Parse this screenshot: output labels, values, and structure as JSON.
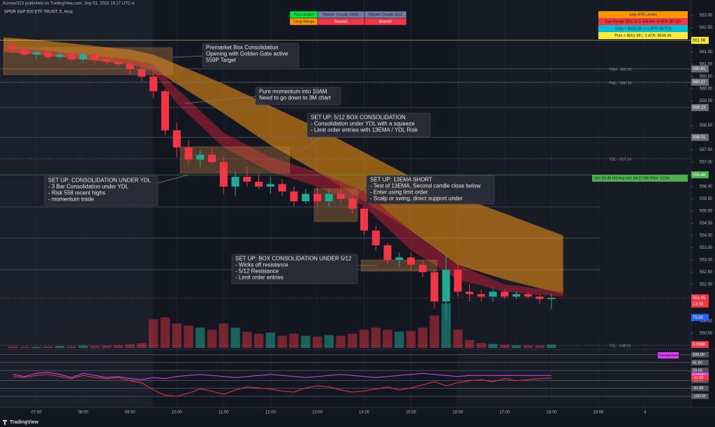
{
  "header": {
    "publisher": "Kunwar313 published on TradingView.com, Sep 03, 2024 18:17 UTC-4",
    "symbol": "SPDR S&P 500 ETF TRUST, 5, Arca",
    "brand": "TradingView"
  },
  "chart_data": [
    {
      "type": "candlestick",
      "x": [
        6.5,
        6.75,
        7,
        7.25,
        7.5,
        7.75,
        8,
        8.25,
        8.5,
        8.75,
        9,
        9.25,
        9.5,
        9.75,
        10,
        10.25,
        10.5,
        10.75,
        11,
        11.25,
        11.5,
        11.75,
        12,
        12.25,
        12.5,
        12.75,
        13,
        13.25,
        13.5,
        13.75,
        14,
        14.25,
        14.5,
        14.75,
        15,
        15.25,
        15.5,
        15.75,
        16,
        16.25,
        16.5,
        16.75,
        17,
        17.25,
        17.5,
        17.75,
        18
      ],
      "open": [
        561.8,
        561.6,
        561.4,
        561.5,
        561.3,
        561.4,
        561.2,
        561.4,
        561.2,
        561.1,
        561.0,
        560.8,
        560.5,
        559.9,
        558.3,
        557.6,
        557.1,
        557.3,
        557.0,
        556.0,
        556.4,
        556.2,
        556.0,
        556.1,
        555.8,
        555.4,
        555.7,
        555.4,
        555.7,
        555.5,
        555.1,
        554.2,
        553.6,
        553.0,
        553.1,
        552.8,
        552.5,
        551.3,
        552.6,
        551.7,
        551.6,
        551.5,
        551.7,
        551.5,
        551.6,
        551.5,
        551.4
      ],
      "high": [
        561.9,
        561.7,
        561.6,
        561.6,
        561.6,
        561.5,
        561.5,
        561.5,
        561.4,
        561.3,
        561.2,
        561.1,
        560.8,
        560.0,
        558.6,
        557.9,
        557.5,
        557.6,
        557.2,
        556.6,
        556.8,
        556.5,
        556.4,
        556.3,
        556.0,
        555.9,
        556.0,
        555.9,
        556.0,
        555.8,
        555.2,
        554.4,
        553.7,
        553.3,
        553.3,
        553.0,
        552.6,
        553.2,
        552.9,
        552.0,
        551.8,
        551.9,
        551.8,
        551.7,
        551.7,
        551.6,
        551.6
      ],
      "low": [
        561.5,
        561.3,
        561.2,
        561.2,
        561.2,
        561.1,
        561.1,
        561.0,
        561.0,
        560.9,
        560.6,
        560.3,
        559.6,
        558.1,
        557.2,
        556.9,
        556.8,
        556.9,
        555.7,
        555.6,
        556.0,
        555.9,
        555.7,
        555.6,
        555.2,
        555.3,
        555.2,
        555.2,
        555.3,
        554.9,
        554.0,
        553.4,
        552.8,
        552.7,
        552.6,
        552.3,
        551.0,
        550.5,
        551.5,
        551.3,
        551.3,
        551.3,
        551.4,
        551.4,
        551.4,
        551.2,
        551.0
      ],
      "close": [
        561.6,
        561.4,
        561.5,
        561.3,
        561.4,
        561.2,
        561.4,
        561.2,
        561.1,
        561.0,
        560.8,
        560.5,
        559.9,
        558.3,
        557.6,
        557.1,
        557.3,
        557.0,
        556.0,
        556.4,
        556.2,
        556.0,
        556.1,
        555.8,
        555.4,
        555.7,
        555.4,
        555.7,
        555.5,
        555.1,
        554.2,
        553.6,
        553.0,
        553.1,
        552.8,
        552.5,
        551.3,
        552.6,
        551.7,
        551.6,
        551.5,
        551.7,
        551.5,
        551.6,
        551.5,
        551.4,
        551.45
      ],
      "up_color": "#22ab94",
      "down_color": "#f23645",
      "xlim": [
        6.224,
        20.985
      ],
      "ylim": [
        549.34,
        563.63
      ],
      "yticks": [
        {
          "value": 563,
          "label": "563.00"
        },
        {
          "value": 562.5,
          "label": "562.50"
        },
        {
          "value": 561.5,
          "label": "561.50"
        },
        {
          "value": 561,
          "label": "561.00"
        },
        {
          "value": 560.5,
          "label": "560.50"
        },
        {
          "value": 560,
          "label": "560.00"
        },
        {
          "value": 559.5,
          "label": "559.50"
        },
        {
          "value": 558.5,
          "label": "558.50"
        },
        {
          "value": 557.5,
          "label": "557.50"
        },
        {
          "value": 557,
          "label": "557.00"
        },
        {
          "value": 556,
          "label": "556.00"
        },
        {
          "value": 555.5,
          "label": "555.50"
        },
        {
          "value": 555,
          "label": "555.00"
        },
        {
          "value": 554.5,
          "label": "554.50"
        },
        {
          "value": 554,
          "label": "554.00"
        },
        {
          "value": 553.5,
          "label": "553.50"
        },
        {
          "value": 553,
          "label": "553.00"
        },
        {
          "value": 552.5,
          "label": "552.50"
        },
        {
          "value": 552,
          "label": "552.00"
        },
        {
          "value": 550.5,
          "label": "550.50"
        },
        {
          "value": 550,
          "label": "550.00"
        }
      ],
      "clouds": [
        {
          "color": "rgba(230,140,20,0.6)",
          "x": [
            6.3,
            7,
            8,
            9,
            9.5,
            10,
            11,
            12,
            13,
            14,
            15,
            16,
            17,
            18.25
          ],
          "upper": [
            562.1,
            562.0,
            561.8,
            561.6,
            561.4,
            561.0,
            560.2,
            559.3,
            558.4,
            557.4,
            556.4,
            555.6,
            554.9,
            554.0
          ],
          "lower": [
            561.5,
            561.4,
            561.2,
            561.0,
            560.8,
            560.2,
            559.0,
            557.7,
            556.6,
            555.4,
            554.2,
            552.8,
            552.2,
            551.6
          ]
        },
        {
          "color": "rgba(150,30,50,0.7)",
          "x": [
            6.3,
            7,
            8,
            9,
            9.5,
            10,
            11,
            12,
            13,
            14,
            15,
            16,
            17,
            18.25
          ],
          "upper": [
            561.7,
            561.6,
            561.4,
            561.2,
            561.0,
            560.0,
            558.2,
            557.2,
            556.6,
            555.8,
            554.2,
            552.8,
            552.0,
            551.7
          ],
          "lower": [
            561.5,
            561.4,
            561.2,
            561.0,
            560.7,
            559.4,
            557.6,
            556.6,
            556.0,
            555.2,
            553.4,
            552.2,
            551.7,
            551.5
          ]
        }
      ],
      "levels": [
        {
          "label": "TDH - 560.81",
          "value": 560.81
        },
        {
          "label": "PML - 560.26",
          "value": 560.26
        },
        {
          "label": "YDL - 557.14",
          "value": 557.14
        },
        {
          "label": "TDL - 549.51",
          "value": 549.51
        }
      ],
      "level_lines": [
        555.17,
        553.89,
        552.6
      ],
      "price_tags": [
        {
          "value": 561.98,
          "label": "561.98",
          "color": "#ffeb3b"
        },
        {
          "value": 560.81,
          "label": "560.81",
          "color": "#6a6d78"
        },
        {
          "value": 560.27,
          "label": "560.27",
          "color": "#6a6d78"
        },
        {
          "value": 559.23,
          "label": "559.23",
          "color": "#6a6d78"
        },
        {
          "value": 558.01,
          "label": "558.01",
          "color": "#6a6d78"
        },
        {
          "value": 556.48,
          "label": "556.48",
          "color": "#4caf50"
        }
      ],
      "last_price": {
        "value": 551.45,
        "label": "551.45",
        "countdown": "13:33",
        "color": "#f23645"
      },
      "volume": {
        "values": [
          4,
          3,
          3,
          4,
          5,
          4,
          6,
          5,
          6,
          7,
          9,
          12,
          70,
          75,
          60,
          55,
          50,
          45,
          60,
          50,
          40,
          35,
          38,
          30,
          35,
          30,
          28,
          32,
          30,
          35,
          45,
          50,
          45,
          40,
          42,
          50,
          80,
          110,
          45,
          20,
          12,
          10,
          8,
          7,
          6,
          6,
          8.658
        ],
        "lim": [
          0,
          120
        ],
        "up_color": "rgba(34,171,148,0.5)",
        "down_color": "rgba(242,54,69,0.45)",
        "tags": [
          {
            "value": 75,
            "label": "75.00",
            "color": "#2962ff"
          },
          {
            "value": 8.658,
            "label": "8.658K",
            "color": "#f23645"
          }
        ]
      },
      "annotations": [
        {
          "lines": [
            "Premarket Box Consolidation",
            "Opening with Golden Gate active",
            "559P Target"
          ]
        },
        {
          "lines": [
            "Pure momentum into 10AM",
            "Need to go down to 3M chart"
          ]
        },
        {
          "lines": [
            "SET UP: 5/12 BOX CONSOLIDATION",
            "- Consolidation under YDL with a squeeze",
            "- Limit order entries with 13EMA / YDL Risk"
          ]
        },
        {
          "lines": [
            "SET UP: CONSOLIDATION UNDER YDL",
            "- 3 Bar Consolidation under YDL",
            "- Risk 558 recent highs",
            "- momentum trade"
          ]
        },
        {
          "lines": [
            "SET UP: 13EMA SHORT",
            "- Test of 13EMA, Second candle close below",
            "- Enter using limit order",
            "- Scalp or swing, direct support under"
          ]
        },
        {
          "lines": [
            "SET UP: BOX CONSOLIDATION UNDER 5/12",
            "- Wicks off resistance",
            "- 5/12 Resistance",
            "- Limit order entries"
          ]
        }
      ],
      "status_table": [
        [
          {
            "text": "Price Action",
            "bg": "#00e640",
            "fg": "#131722"
          },
          {
            "text": "Ripster Clouds 34/50",
            "bg": "#6f7fa6",
            "fg": "#131722"
          },
          {
            "text": "Ripster Clouds 5/12",
            "bg": "#6f7fa6",
            "fg": "#131722"
          }
        ],
        [
          {
            "text": "Chop Range",
            "bg": "#ff9800",
            "fg": "#131722"
          },
          {
            "text": "Bearish",
            "bg": "#f23645",
            "fg": "#ffffff"
          },
          {
            "text": "Bearish",
            "bg": "#f23645",
            "fg": "#ffffff"
          }
        ]
      ],
      "atr_table": [
        {
          "text": "Saty ATR Levels",
          "bg": "#ff9800",
          "fg": "#131722"
        },
        {
          "text": "Day Range ($11.3) is 156.5% of ATR ($7.22)",
          "bg": "#f23645",
          "fg": "#131722"
        },
        {
          "text": "Calls > $565.38 | +1 ATR: $570.0",
          "bg": "#00bcd4",
          "fg": "#131722"
        },
        {
          "text": "Puts < $561.98 | -1 ATR: $556.46",
          "bg": "#ffeb3b",
          "fg": "#131722"
        }
      ],
      "volume_info": {
        "text": "Vol: 60.49 Mil   Avg Vol: 54.27 Mil   RVol: 111%",
        "bg": "#4caf50"
      }
    },
    {
      "type": "line",
      "x": [
        6.5,
        6.75,
        7,
        7.25,
        7.5,
        7.75,
        8,
        8.25,
        8.5,
        8.75,
        9,
        9.25,
        9.5,
        9.75,
        10,
        10.25,
        10.5,
        10.75,
        11,
        11.25,
        11.5,
        11.75,
        12,
        12.25,
        12.5,
        12.75,
        13,
        13.25,
        13.5,
        13.75,
        14,
        14.25,
        14.5,
        14.75,
        15,
        15.25,
        15.5,
        15.75,
        16,
        16.25,
        16.5,
        16.75,
        17,
        17.25,
        17.5,
        17.75,
        18
      ],
      "series": [
        {
          "color": "#e040fb",
          "values": [
            5,
            -5,
            10,
            15,
            5,
            -10,
            10,
            0,
            -10,
            -5,
            -15,
            -20,
            -10,
            -15,
            -5,
            0,
            5,
            0,
            -5,
            -10,
            -5,
            0,
            5,
            0,
            -5,
            -10,
            -5,
            0,
            5,
            0,
            -5,
            -10,
            -5,
            0,
            5,
            10,
            5,
            0,
            -5,
            0,
            0,
            0,
            0,
            0,
            0,
            0,
            0
          ]
        },
        {
          "color": "#f23645",
          "values": [
            -5,
            -10,
            0,
            5,
            -5,
            -15,
            0,
            -10,
            -15,
            -10,
            -25,
            -35,
            -70,
            -95,
            -100,
            -85,
            -65,
            -75,
            -90,
            -70,
            -55,
            -60,
            -65,
            -75,
            -80,
            -60,
            -50,
            -55,
            -70,
            -80,
            -75,
            -65,
            -55,
            -70,
            -60,
            -45,
            -30,
            -50,
            -35,
            -25,
            -20,
            -30,
            -15,
            -25,
            -20,
            -15,
            -11.63
          ]
        }
      ],
      "xlim": [
        6.224,
        20.985
      ],
      "xticks": [
        {
          "value": 7,
          "label": "07:00"
        },
        {
          "value": 8,
          "label": "08:00"
        },
        {
          "value": 9,
          "label": "09:00"
        },
        {
          "value": 10,
          "label": "10:00"
        },
        {
          "value": 11,
          "label": "11:00"
        },
        {
          "value": 12,
          "label": "12:00"
        },
        {
          "value": 13,
          "label": "13:00"
        },
        {
          "value": 14,
          "label": "14:00"
        },
        {
          "value": 15,
          "label": "15:00"
        },
        {
          "value": 16,
          "label": "16:00"
        },
        {
          "value": 17,
          "label": "17:00"
        },
        {
          "value": 18,
          "label": "18:00"
        },
        {
          "value": 19,
          "label": "19:00"
        },
        {
          "value": 20,
          "label": "4"
        }
      ],
      "ylim": [
        -120,
        115
      ],
      "yticks": [
        {
          "value": 100,
          "label": "100.00"
        },
        {
          "value": 61.8,
          "label": "61.80"
        },
        {
          "value": 23.6,
          "label": "23.60"
        },
        {
          "value": -23.6,
          "label": "-23.60"
        },
        {
          "value": -61.8,
          "label": "-61.80"
        },
        {
          "value": -100,
          "label": "-100.00"
        }
      ],
      "tags": [
        {
          "value": 0,
          "label": "0.0000",
          "color": "#e040fb"
        },
        {
          "value": -11.63,
          "label": "-11.63",
          "color": "#f23645"
        }
      ],
      "legend_label": "Comparison"
    }
  ]
}
